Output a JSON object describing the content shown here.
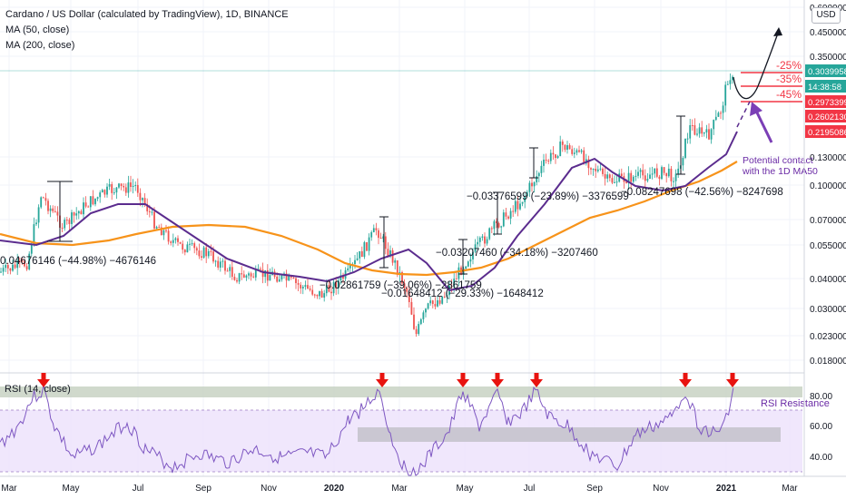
{
  "header": {
    "title": "Cardano / US Dollar (calculated by TradingView), 1D, BINANCE",
    "ma50": "MA (50, close)",
    "ma200": "MA (200, close)",
    "currency": "USD"
  },
  "price_axis": {
    "ticks": [
      "0.60000000",
      "0.45000000",
      "0.35000000",
      "0.13000000",
      "0.10000000",
      "0.07000000",
      "0.05500000",
      "0.04000000",
      "0.03000000",
      "0.02300000",
      "0.01800000"
    ],
    "badges": [
      {
        "text": "0.30399583",
        "color": "#26a69a"
      },
      {
        "text": "14:38:58",
        "color": "#26a69a"
      },
      {
        "text": "0.29733997",
        "color": "#f23645"
      },
      {
        "text": "0.26021307",
        "color": "#f23645"
      },
      {
        "text": "0.21950868",
        "color": "#f23645"
      }
    ]
  },
  "rsi": {
    "label": "RSI (14, close)",
    "ticks": [
      "80.00",
      "60.00",
      "40.00"
    ],
    "resistance_label": "RSI Resistance"
  },
  "x_axis": {
    "labels": [
      "Mar",
      "May",
      "Jul",
      "Sep",
      "Nov",
      "2020",
      "Mar",
      "May",
      "Jul",
      "Sep",
      "Nov",
      "2021",
      "Mar"
    ]
  },
  "annotations": {
    "targets": [
      "-25%",
      "-35%",
      "-45%"
    ],
    "contact_line1": "Potential contact",
    "contact_line2": "with the 1D MA50",
    "measurements": [
      "0.04676146 (−44.98%) −4676146",
      "−0.02861759 (−39.06%) −2861759",
      "−0.01648412 (−29.33%) −1648412",
      "−0.03207460 (−34.18%) −3207460",
      "−0.03376599 (−23.89%) −3376599",
      "−0.08247698 (−42.56%) −8247698"
    ]
  },
  "chart_data": {
    "type": "candlestick",
    "title": "Cardano / US Dollar (calculated by TradingView), 1D, BINANCE",
    "y_scale": "log",
    "ylim": [
      0.016,
      0.62
    ],
    "series": [
      {
        "name": "ADA/USD",
        "type": "candlestick",
        "x": [
          "2019-02",
          "2019-03",
          "2019-04",
          "2019-05",
          "2019-06",
          "2019-07",
          "2019-08",
          "2019-09",
          "2019-10",
          "2019-11",
          "2019-12",
          "2020-01",
          "2020-02",
          "2020-03",
          "2020-04",
          "2020-05",
          "2020-06",
          "2020-07",
          "2020-08",
          "2020-09",
          "2020-10",
          "2020-11",
          "2020-12",
          "2021-01"
        ],
        "close": [
          0.045,
          0.06,
          0.085,
          0.075,
          0.09,
          0.07,
          0.05,
          0.045,
          0.04,
          0.038,
          0.034,
          0.05,
          0.065,
          0.028,
          0.035,
          0.05,
          0.085,
          0.13,
          0.14,
          0.095,
          0.11,
          0.1,
          0.18,
          0.3
        ]
      },
      {
        "name": "MA (50, close)",
        "type": "line"
      },
      {
        "name": "MA (200, close)",
        "type": "line"
      },
      {
        "name": "RSI (14, close)",
        "type": "line",
        "ylim": [
          28,
          92
        ],
        "resistance": 80
      }
    ]
  }
}
